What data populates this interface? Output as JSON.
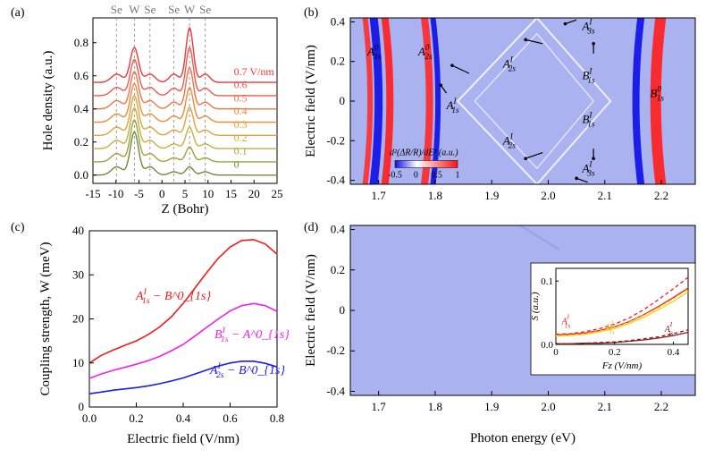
{
  "chart_data": [
    {
      "panel": "(a)",
      "type": "line",
      "title": "",
      "xlabel": "Z (Bohr)",
      "ylabel": "Hole density (a.u.)",
      "xlim": [
        -15,
        25
      ],
      "ylim": [
        -0.05,
        0.95
      ],
      "xticks": [
        "-15",
        "-10",
        "-5",
        "0",
        "5",
        "10",
        "15",
        "20",
        "25"
      ],
      "yticks": [
        "0.0",
        "0.2",
        "0.4",
        "0.6",
        "0.8"
      ],
      "top_labels": [
        "Se",
        "W",
        "Se",
        "Se",
        "W",
        "Se"
      ],
      "top_label_positions": [
        -9.9,
        -6.0,
        -2.6,
        2.6,
        6.0,
        9.4
      ],
      "curve_offsets": [
        0.0,
        0.08,
        0.16,
        0.24,
        0.32,
        0.4,
        0.48,
        0.56
      ],
      "legend_values": [
        "0",
        "0.1",
        "0.2",
        "0.3",
        "0.4",
        "0.5",
        "0.6",
        "0.7 V/nm"
      ],
      "series_colors": [
        "#6f8a3a",
        "#9aa43c",
        "#c8ae3e",
        "#e0a23c",
        "#ee8a38",
        "#f07446",
        "#ee5a4c",
        "#ea3a3a"
      ],
      "series_note": "stacked hole-density profiles, W-left peak dominant at low field, W-right peak grows with field"
    },
    {
      "panel": "(b)",
      "type": "heatmap",
      "xlabel": "",
      "ylabel": "Electric field (V/nm)",
      "xlim": [
        1.65,
        2.26
      ],
      "ylim": [
        -0.42,
        0.42
      ],
      "xticks": [
        "1.7",
        "1.8",
        "1.9",
        "2.0",
        "2.1",
        "2.2"
      ],
      "yticks": [
        "0.4",
        "0.2",
        "0",
        "-0.2",
        "-0.4"
      ],
      "colorbar_label": "d²(ΔR/R)/dE² (a.u.)",
      "colorbar_ticks": [
        "-0.5",
        "0",
        "0.5",
        "1"
      ],
      "features": [
        {
          "name": "A1s0",
          "energy": 1.71
        },
        {
          "name": "A2s0",
          "energy": 1.81
        },
        {
          "name": "B1s0",
          "energy": 2.17
        }
      ],
      "annotations": [
        "A^0_{1s}",
        "A^0_{2s}",
        "A^I_{1s}",
        "A^I_{2s}",
        "A^I_{2s}",
        "A^I_{3s}",
        "A^I_{3s}",
        "B^I_{1s}",
        "B^I_{1s}",
        "B^0_{1s}"
      ]
    },
    {
      "panel": "(c)",
      "type": "line",
      "xlabel": "Electric field (V/nm)",
      "ylabel": "Coupling strength, W (meV)",
      "xlim": [
        0,
        0.8
      ],
      "ylim": [
        0,
        40
      ],
      "xticks": [
        "0.0",
        "0.2",
        "0.4",
        "0.6",
        "0.8"
      ],
      "yticks": [
        "0",
        "10",
        "20",
        "30",
        "40"
      ],
      "x": [
        0,
        0.05,
        0.1,
        0.15,
        0.2,
        0.25,
        0.3,
        0.35,
        0.4,
        0.45,
        0.5,
        0.55,
        0.6,
        0.65,
        0.7,
        0.75,
        0.8
      ],
      "series": [
        {
          "name": "A1s_I - B1s_0",
          "color": "#ee1c1c",
          "values": [
            10,
            11.7,
            12.9,
            14,
            15,
            16.4,
            18.2,
            20.5,
            23.5,
            27,
            30.5,
            33.8,
            36.3,
            37.8,
            38,
            37,
            34.7
          ]
        },
        {
          "name": "B1s_I - A1s_0",
          "color": "#ee22ee",
          "values": [
            6.5,
            7.5,
            8.3,
            9,
            9.7,
            10.5,
            11.5,
            12.8,
            14.2,
            16.1,
            18.1,
            20,
            21.8,
            23,
            23.5,
            23,
            21.7
          ]
        },
        {
          "name": "A2s_I - B1s_0",
          "color": "#1c1ce6",
          "values": [
            3,
            3.4,
            3.8,
            4.1,
            4.4,
            4.8,
            5.3,
            5.9,
            6.6,
            7.5,
            8.4,
            9.3,
            10,
            10.4,
            10.4,
            9.9,
            9.1
          ]
        }
      ]
    },
    {
      "panel": "(d)",
      "type": "heatmap",
      "xlabel": "Photon energy (eV)",
      "ylabel": "Electric field (V/nm)",
      "xlim": [
        1.65,
        2.26
      ],
      "ylim": [
        -0.42,
        0.42
      ],
      "xticks": [
        "1.7",
        "1.8",
        "1.9",
        "2.0",
        "2.1",
        "2.2"
      ],
      "yticks": [
        "0.4",
        "0.2",
        "0",
        "-0.2",
        "-0.4"
      ],
      "inset": {
        "xlabel": "Fz (V/nm)",
        "ylabel": "S (a.u.)",
        "xlim": [
          0,
          0.45
        ],
        "ylim": [
          0,
          0.12
        ],
        "xticks": [
          "0",
          "0.2",
          "0.4"
        ],
        "yticks": [
          "0.0",
          "0.1"
        ],
        "x": [
          0,
          0.05,
          0.1,
          0.15,
          0.2,
          0.25,
          0.3,
          0.35,
          0.4,
          0.45
        ],
        "series": [
          {
            "name": "A^I_{1s}",
            "style": "solid",
            "color": "#ee1c1c",
            "values": [
              0.015,
              0.016,
              0.018,
              0.022,
              0.028,
              0.036,
              0.047,
              0.06,
              0.074,
              0.089
            ]
          },
          {
            "name": "A^I_{1s} ref",
            "style": "dashed",
            "color": "#ee1c1c",
            "values": [
              0.016,
              0.017,
              0.02,
              0.025,
              0.032,
              0.042,
              0.055,
              0.071,
              0.088,
              0.106
            ]
          },
          {
            "name": "B^I_{1s}",
            "style": "solid",
            "color": "#f2d21c",
            "values": [
              0.013,
              0.014,
              0.016,
              0.02,
              0.025,
              0.033,
              0.043,
              0.055,
              0.068,
              0.083
            ]
          },
          {
            "name": "B^I_{1s} ref",
            "style": "dashed",
            "color": "#f2d21c",
            "values": [
              0.014,
              0.015,
              0.017,
              0.021,
              0.027,
              0.035,
              0.046,
              0.058,
              0.072,
              0.087
            ]
          },
          {
            "name": "A^I_{2s}",
            "style": "solid",
            "color": "#8a1c1c",
            "values": [
              0.001,
              0.001,
              0.002,
              0.002,
              0.003,
              0.005,
              0.007,
              0.01,
              0.014,
              0.019
            ]
          },
          {
            "name": "A^I_{2s} ref",
            "style": "dashed",
            "color": "#8a1c1c",
            "values": [
              0.001,
              0.001,
              0.002,
              0.003,
              0.004,
              0.006,
              0.009,
              0.012,
              0.017,
              0.023
            ]
          }
        ],
        "labels": [
          "A^I_{1s}",
          "B^I_{1s}",
          "A^I_{2s}"
        ]
      }
    }
  ]
}
